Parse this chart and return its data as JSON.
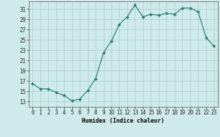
{
  "x": [
    0,
    1,
    2,
    3,
    4,
    5,
    6,
    7,
    8,
    9,
    10,
    11,
    12,
    13,
    14,
    15,
    16,
    17,
    18,
    19,
    20,
    21,
    22,
    23
  ],
  "y": [
    16.5,
    15.5,
    15.5,
    14.8,
    14.2,
    13.2,
    13.5,
    15.2,
    17.5,
    22.5,
    24.8,
    28.0,
    29.5,
    31.8,
    29.5,
    30.0,
    29.8,
    30.2,
    30.0,
    31.2,
    31.2,
    30.5,
    25.5,
    23.8
  ],
  "line_color": "#2a7d6e",
  "marker": "D",
  "marker_size": 2.0,
  "bg_color": "#ceeaea",
  "grid_color": "#aed0d0",
  "xlabel": "Humidex (Indice chaleur)",
  "yticks": [
    13,
    15,
    17,
    19,
    21,
    23,
    25,
    27,
    29,
    31
  ],
  "xticks": [
    0,
    1,
    2,
    3,
    4,
    5,
    6,
    7,
    8,
    9,
    10,
    11,
    12,
    13,
    14,
    15,
    16,
    17,
    18,
    19,
    20,
    21,
    22,
    23
  ],
  "ylim": [
    12.0,
    32.5
  ],
  "xlim": [
    -0.5,
    23.5
  ],
  "tick_fontsize": 5.5,
  "xlabel_fontsize": 6.0,
  "linewidth": 0.9
}
